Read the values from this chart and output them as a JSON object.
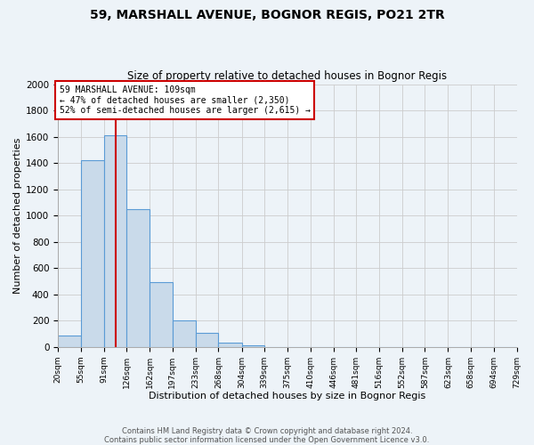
{
  "title": "59, MARSHALL AVENUE, BOGNOR REGIS, PO21 2TR",
  "subtitle": "Size of property relative to detached houses in Bognor Regis",
  "xlabel": "Distribution of detached houses by size in Bognor Regis",
  "ylabel": "Number of detached properties",
  "bar_color": "#c9daea",
  "bar_edge_color": "#5b9bd5",
  "bins": [
    20,
    55,
    91,
    126,
    162,
    197,
    233,
    268,
    304,
    339,
    375,
    410,
    446,
    481,
    516,
    552,
    587,
    623,
    658,
    694,
    729
  ],
  "counts": [
    85,
    1420,
    1610,
    1050,
    490,
    200,
    105,
    35,
    15,
    0,
    0,
    0,
    0,
    0,
    0,
    0,
    0,
    0,
    0,
    0
  ],
  "property_line_x": 109,
  "red_line_color": "#cc0000",
  "annotation_line1": "59 MARSHALL AVENUE: 109sqm",
  "annotation_line2": "← 47% of detached houses are smaller (2,350)",
  "annotation_line3": "52% of semi-detached houses are larger (2,615) →",
  "annotation_box_color": "#ffffff",
  "annotation_box_edge": "#cc0000",
  "ylim": [
    0,
    2000
  ],
  "yticks": [
    0,
    200,
    400,
    600,
    800,
    1000,
    1200,
    1400,
    1600,
    1800,
    2000
  ],
  "tick_labels": [
    "20sqm",
    "55sqm",
    "91sqm",
    "126sqm",
    "162sqm",
    "197sqm",
    "233sqm",
    "268sqm",
    "304sqm",
    "339sqm",
    "375sqm",
    "410sqm",
    "446sqm",
    "481sqm",
    "516sqm",
    "552sqm",
    "587sqm",
    "623sqm",
    "658sqm",
    "694sqm",
    "729sqm"
  ],
  "grid_color": "#cccccc",
  "bg_color": "#edf3f8",
  "footer_line1": "Contains HM Land Registry data © Crown copyright and database right 2024.",
  "footer_line2": "Contains public sector information licensed under the Open Government Licence v3.0."
}
